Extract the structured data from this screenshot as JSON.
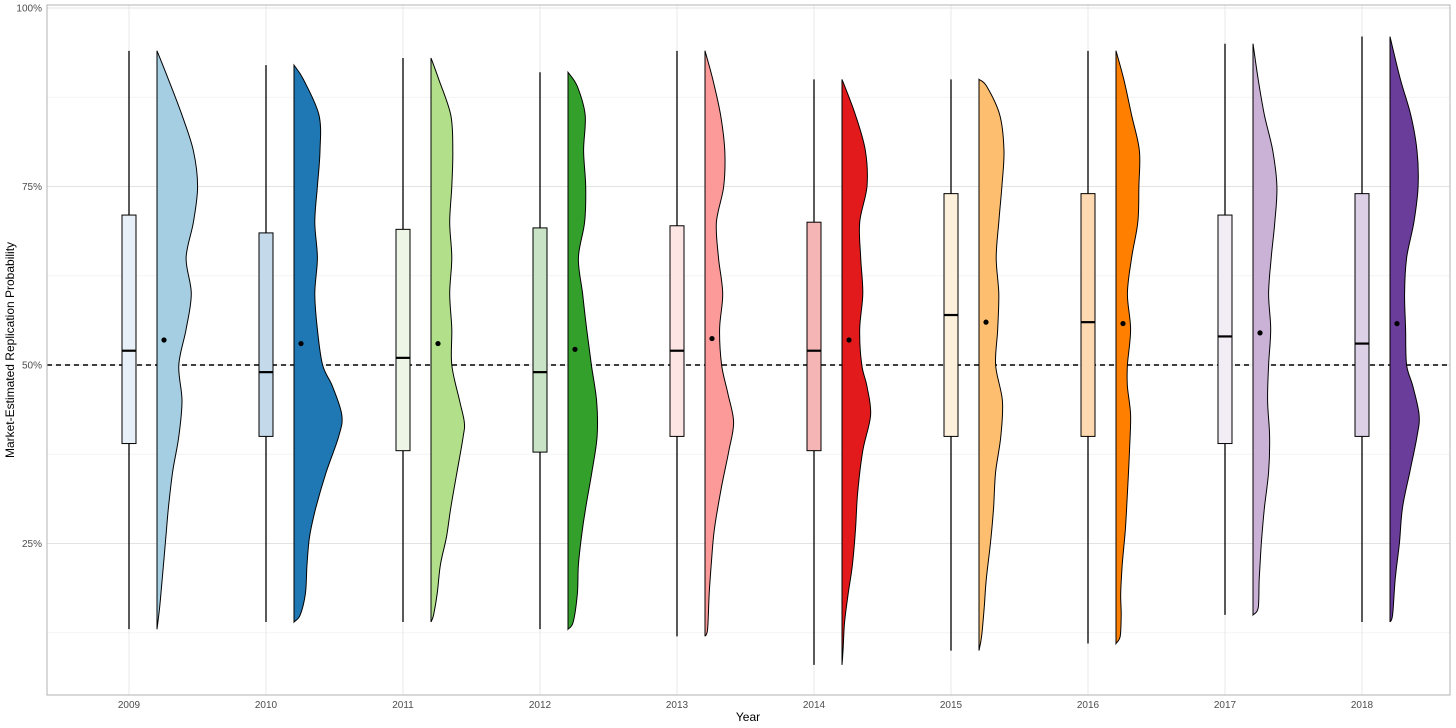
{
  "chart_data": {
    "type": "raincloud",
    "title": "",
    "xlabel": "Year",
    "ylabel": "Market-Estimated Replication Probability",
    "ylim": [
      0,
      1
    ],
    "y_ticks": [
      0.25,
      0.5,
      0.75,
      1.0
    ],
    "y_tick_labels": [
      "25%",
      "50%",
      "75%",
      "100%"
    ],
    "reference_line": {
      "y": 0.5,
      "style": "dashed"
    },
    "grid": true,
    "legend": "none",
    "categories": [
      "2009",
      "2010",
      "2011",
      "2012",
      "2013",
      "2014",
      "2015",
      "2016",
      "2017",
      "2018"
    ],
    "series": [
      {
        "year": "2009",
        "min": 0.13,
        "q1": 0.39,
        "median": 0.52,
        "q3": 0.71,
        "max": 0.94,
        "mean": 0.535,
        "box_color": "#e7f0f8",
        "density_color": "#a6cee3",
        "density": [
          [
            0.13,
            0.0
          ],
          [
            0.16,
            0.05
          ],
          [
            0.2,
            0.1
          ],
          [
            0.25,
            0.16
          ],
          [
            0.3,
            0.22
          ],
          [
            0.35,
            0.3
          ],
          [
            0.4,
            0.42
          ],
          [
            0.45,
            0.48
          ],
          [
            0.5,
            0.42
          ],
          [
            0.55,
            0.56
          ],
          [
            0.6,
            0.66
          ],
          [
            0.65,
            0.56
          ],
          [
            0.7,
            0.7
          ],
          [
            0.75,
            0.78
          ],
          [
            0.8,
            0.7
          ],
          [
            0.85,
            0.48
          ],
          [
            0.9,
            0.22
          ],
          [
            0.94,
            0.0
          ]
        ]
      },
      {
        "year": "2010",
        "min": 0.14,
        "q1": 0.4,
        "median": 0.49,
        "q3": 0.685,
        "max": 0.92,
        "mean": 0.53,
        "box_color": "#c4d9ea",
        "density_color": "#1f78b4",
        "density": [
          [
            0.14,
            0.0
          ],
          [
            0.15,
            0.12
          ],
          [
            0.18,
            0.22
          ],
          [
            0.22,
            0.25
          ],
          [
            0.26,
            0.3
          ],
          [
            0.3,
            0.42
          ],
          [
            0.35,
            0.62
          ],
          [
            0.4,
            0.86
          ],
          [
            0.43,
            0.92
          ],
          [
            0.47,
            0.74
          ],
          [
            0.5,
            0.55
          ],
          [
            0.55,
            0.45
          ],
          [
            0.6,
            0.4
          ],
          [
            0.65,
            0.45
          ],
          [
            0.7,
            0.4
          ],
          [
            0.75,
            0.45
          ],
          [
            0.8,
            0.5
          ],
          [
            0.85,
            0.48
          ],
          [
            0.9,
            0.18
          ],
          [
            0.92,
            0.0
          ]
        ]
      },
      {
        "year": "2011",
        "min": 0.14,
        "q1": 0.38,
        "median": 0.51,
        "q3": 0.69,
        "max": 0.93,
        "mean": 0.53,
        "box_color": "#edf6e6",
        "density_color": "#b2df8a",
        "density": [
          [
            0.14,
            0.0
          ],
          [
            0.15,
            0.05
          ],
          [
            0.18,
            0.12
          ],
          [
            0.22,
            0.18
          ],
          [
            0.26,
            0.3
          ],
          [
            0.3,
            0.38
          ],
          [
            0.35,
            0.5
          ],
          [
            0.4,
            0.62
          ],
          [
            0.42,
            0.64
          ],
          [
            0.45,
            0.55
          ],
          [
            0.5,
            0.4
          ],
          [
            0.55,
            0.4
          ],
          [
            0.6,
            0.36
          ],
          [
            0.65,
            0.4
          ],
          [
            0.7,
            0.36
          ],
          [
            0.75,
            0.4
          ],
          [
            0.8,
            0.42
          ],
          [
            0.85,
            0.38
          ],
          [
            0.9,
            0.15
          ],
          [
            0.93,
            0.0
          ]
        ]
      },
      {
        "year": "2012",
        "min": 0.13,
        "q1": 0.378,
        "median": 0.49,
        "q3": 0.692,
        "max": 0.91,
        "mean": 0.522,
        "box_color": "#c9e3c7",
        "density_color": "#33a02c",
        "density": [
          [
            0.13,
            0.0
          ],
          [
            0.14,
            0.1
          ],
          [
            0.18,
            0.18
          ],
          [
            0.22,
            0.2
          ],
          [
            0.26,
            0.26
          ],
          [
            0.3,
            0.34
          ],
          [
            0.35,
            0.46
          ],
          [
            0.4,
            0.56
          ],
          [
            0.45,
            0.55
          ],
          [
            0.5,
            0.45
          ],
          [
            0.55,
            0.36
          ],
          [
            0.6,
            0.28
          ],
          [
            0.65,
            0.2
          ],
          [
            0.7,
            0.32
          ],
          [
            0.75,
            0.34
          ],
          [
            0.8,
            0.3
          ],
          [
            0.85,
            0.33
          ],
          [
            0.89,
            0.18
          ],
          [
            0.91,
            0.0
          ]
        ]
      },
      {
        "year": "2013",
        "min": 0.12,
        "q1": 0.4,
        "median": 0.52,
        "q3": 0.695,
        "max": 0.94,
        "mean": 0.537,
        "box_color": "#fde5e4",
        "density_color": "#fb9a99",
        "density": [
          [
            0.12,
            0.0
          ],
          [
            0.13,
            0.05
          ],
          [
            0.18,
            0.08
          ],
          [
            0.22,
            0.12
          ],
          [
            0.27,
            0.18
          ],
          [
            0.33,
            0.32
          ],
          [
            0.38,
            0.46
          ],
          [
            0.42,
            0.55
          ],
          [
            0.46,
            0.44
          ],
          [
            0.5,
            0.32
          ],
          [
            0.55,
            0.28
          ],
          [
            0.6,
            0.34
          ],
          [
            0.65,
            0.26
          ],
          [
            0.7,
            0.22
          ],
          [
            0.75,
            0.36
          ],
          [
            0.8,
            0.38
          ],
          [
            0.85,
            0.3
          ],
          [
            0.9,
            0.15
          ],
          [
            0.94,
            0.0
          ]
        ]
      },
      {
        "year": "2014",
        "min": 0.08,
        "q1": 0.38,
        "median": 0.52,
        "q3": 0.7,
        "max": 0.9,
        "mean": 0.535,
        "box_color": "#f5b5b5",
        "density_color": "#e31a1c",
        "density": [
          [
            0.08,
            0.0
          ],
          [
            0.1,
            0.02
          ],
          [
            0.14,
            0.05
          ],
          [
            0.18,
            0.12
          ],
          [
            0.22,
            0.2
          ],
          [
            0.27,
            0.26
          ],
          [
            0.32,
            0.3
          ],
          [
            0.38,
            0.4
          ],
          [
            0.43,
            0.55
          ],
          [
            0.47,
            0.48
          ],
          [
            0.5,
            0.38
          ],
          [
            0.55,
            0.34
          ],
          [
            0.6,
            0.4
          ],
          [
            0.65,
            0.36
          ],
          [
            0.7,
            0.34
          ],
          [
            0.75,
            0.48
          ],
          [
            0.8,
            0.45
          ],
          [
            0.85,
            0.26
          ],
          [
            0.9,
            0.0
          ]
        ]
      },
      {
        "year": "2015",
        "min": 0.1,
        "q1": 0.4,
        "median": 0.57,
        "q3": 0.74,
        "max": 0.9,
        "mean": 0.56,
        "box_color": "#fdf1dc",
        "density_color": "#fdbf6f",
        "density": [
          [
            0.1,
            0.0
          ],
          [
            0.12,
            0.05
          ],
          [
            0.16,
            0.1
          ],
          [
            0.2,
            0.14
          ],
          [
            0.25,
            0.22
          ],
          [
            0.3,
            0.28
          ],
          [
            0.35,
            0.32
          ],
          [
            0.4,
            0.42
          ],
          [
            0.45,
            0.45
          ],
          [
            0.5,
            0.32
          ],
          [
            0.55,
            0.36
          ],
          [
            0.6,
            0.38
          ],
          [
            0.65,
            0.33
          ],
          [
            0.7,
            0.38
          ],
          [
            0.75,
            0.44
          ],
          [
            0.8,
            0.48
          ],
          [
            0.85,
            0.4
          ],
          [
            0.89,
            0.15
          ],
          [
            0.9,
            0.0
          ]
        ]
      },
      {
        "year": "2016",
        "min": 0.11,
        "q1": 0.4,
        "median": 0.56,
        "q3": 0.74,
        "max": 0.94,
        "mean": 0.558,
        "box_color": "#fed8b0",
        "density_color": "#ff7f00",
        "density": [
          [
            0.11,
            0.0
          ],
          [
            0.12,
            0.08
          ],
          [
            0.15,
            0.1
          ],
          [
            0.18,
            0.09
          ],
          [
            0.22,
            0.12
          ],
          [
            0.27,
            0.18
          ],
          [
            0.32,
            0.22
          ],
          [
            0.38,
            0.26
          ],
          [
            0.43,
            0.28
          ],
          [
            0.47,
            0.22
          ],
          [
            0.5,
            0.22
          ],
          [
            0.55,
            0.28
          ],
          [
            0.6,
            0.22
          ],
          [
            0.65,
            0.3
          ],
          [
            0.7,
            0.42
          ],
          [
            0.75,
            0.44
          ],
          [
            0.8,
            0.45
          ],
          [
            0.85,
            0.3
          ],
          [
            0.9,
            0.15
          ],
          [
            0.94,
            0.0
          ]
        ]
      },
      {
        "year": "2017",
        "min": 0.15,
        "q1": 0.39,
        "median": 0.54,
        "q3": 0.71,
        "max": 0.95,
        "mean": 0.545,
        "box_color": "#f2ecf5",
        "density_color": "#cab2d6",
        "density": [
          [
            0.15,
            0.0
          ],
          [
            0.16,
            0.1
          ],
          [
            0.2,
            0.12
          ],
          [
            0.25,
            0.16
          ],
          [
            0.3,
            0.22
          ],
          [
            0.35,
            0.3
          ],
          [
            0.4,
            0.32
          ],
          [
            0.45,
            0.28
          ],
          [
            0.5,
            0.3
          ],
          [
            0.55,
            0.34
          ],
          [
            0.6,
            0.3
          ],
          [
            0.65,
            0.35
          ],
          [
            0.7,
            0.42
          ],
          [
            0.75,
            0.46
          ],
          [
            0.8,
            0.38
          ],
          [
            0.85,
            0.22
          ],
          [
            0.9,
            0.1
          ],
          [
            0.95,
            0.0
          ]
        ]
      },
      {
        "year": "2018",
        "min": 0.14,
        "q1": 0.4,
        "median": 0.53,
        "q3": 0.74,
        "max": 0.96,
        "mean": 0.558,
        "box_color": "#dcd0e7",
        "density_color": "#6a3d9a",
        "density": [
          [
            0.14,
            0.0
          ],
          [
            0.15,
            0.05
          ],
          [
            0.2,
            0.1
          ],
          [
            0.25,
            0.18
          ],
          [
            0.3,
            0.24
          ],
          [
            0.35,
            0.38
          ],
          [
            0.4,
            0.52
          ],
          [
            0.43,
            0.56
          ],
          [
            0.47,
            0.44
          ],
          [
            0.5,
            0.32
          ],
          [
            0.55,
            0.3
          ],
          [
            0.6,
            0.28
          ],
          [
            0.65,
            0.32
          ],
          [
            0.7,
            0.46
          ],
          [
            0.75,
            0.54
          ],
          [
            0.8,
            0.52
          ],
          [
            0.85,
            0.4
          ],
          [
            0.9,
            0.2
          ],
          [
            0.96,
            0.0
          ]
        ]
      }
    ]
  }
}
